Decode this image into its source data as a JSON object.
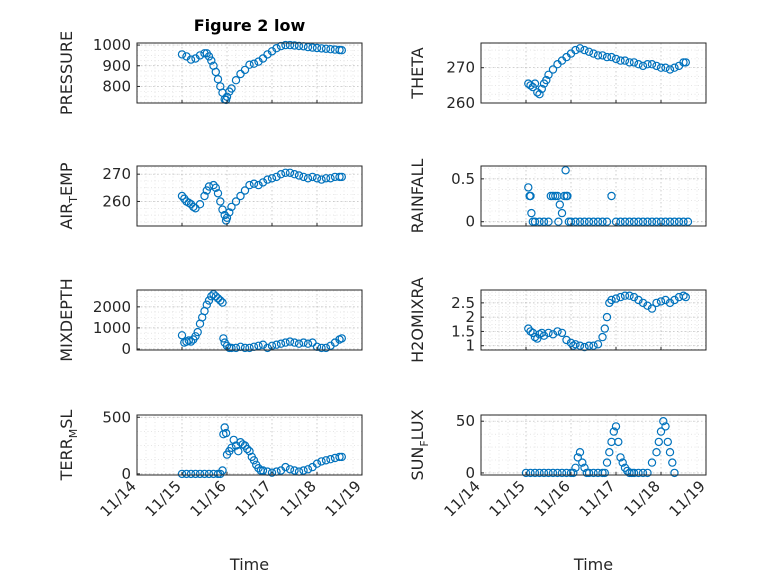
{
  "figure": {
    "title": "Figure 2 low"
  },
  "chart_data": [
    {
      "type": "scatter",
      "ylabel": "PRESSURE",
      "xlabel": "",
      "title": "Figure 2 low",
      "xlim": [
        "11/14",
        "11/19"
      ],
      "ylim": [
        720,
        1010
      ],
      "yticks": [
        800,
        900,
        1000
      ],
      "yticklabels": [
        "800",
        "900",
        "1000"
      ],
      "grid": true,
      "x": [
        15.0,
        15.1,
        15.2,
        15.3,
        15.4,
        15.5,
        15.55,
        15.6,
        15.65,
        15.7,
        15.75,
        15.8,
        15.85,
        15.9,
        15.95,
        15.98,
        16.0,
        16.05,
        16.1,
        16.2,
        16.3,
        16.4,
        16.5,
        16.6,
        16.7,
        16.8,
        16.9,
        17.0,
        17.1,
        17.2,
        17.3,
        17.4,
        17.5,
        17.6,
        17.7,
        17.8,
        17.9,
        18.0,
        18.1,
        18.2,
        18.3,
        18.4,
        18.5,
        18.55
      ],
      "y": [
        955,
        945,
        930,
        935,
        950,
        960,
        960,
        945,
        925,
        900,
        870,
        835,
        800,
        770,
        738,
        735,
        750,
        775,
        790,
        830,
        860,
        880,
        905,
        910,
        920,
        935,
        955,
        970,
        985,
        995,
        1000,
        1000,
        998,
        996,
        994,
        990,
        988,
        986,
        984,
        982,
        980,
        978,
        976,
        975
      ]
    },
    {
      "type": "scatter",
      "ylabel": "THETA",
      "xlabel": "",
      "xlim": [
        "11/14",
        "11/19"
      ],
      "ylim": [
        260,
        277
      ],
      "yticks": [
        260,
        270
      ],
      "yticklabels": [
        "260",
        "270"
      ],
      "grid": true,
      "x": [
        15.05,
        15.1,
        15.15,
        15.2,
        15.25,
        15.3,
        15.35,
        15.4,
        15.45,
        15.5,
        15.6,
        15.7,
        15.8,
        15.9,
        16.0,
        16.1,
        16.2,
        16.3,
        16.4,
        16.5,
        16.6,
        16.7,
        16.8,
        16.9,
        17.0,
        17.1,
        17.2,
        17.3,
        17.4,
        17.5,
        17.6,
        17.7,
        17.8,
        17.9,
        18.0,
        18.1,
        18.2,
        18.3,
        18.4,
        18.5,
        18.55
      ],
      "y": [
        265.5,
        265,
        264.5,
        265.5,
        263,
        262.5,
        264,
        265.5,
        266.5,
        268,
        269.5,
        271,
        272,
        273,
        274,
        275,
        275.5,
        275,
        274.5,
        274,
        273.5,
        273.5,
        273,
        273,
        272.5,
        272,
        272,
        271.5,
        271.5,
        271,
        270.5,
        271,
        271,
        270.5,
        270,
        270,
        269.5,
        270,
        270.5,
        271.5,
        271.5
      ]
    },
    {
      "type": "scatter",
      "ylabel": "AIR_TEMP",
      "xlabel": "",
      "xlim": [
        "11/14",
        "11/19"
      ],
      "ylim": [
        251,
        273
      ],
      "yticks": [
        260,
        270
      ],
      "yticklabels": [
        "260",
        "270"
      ],
      "grid": true,
      "x": [
        15.0,
        15.05,
        15.1,
        15.15,
        15.2,
        15.25,
        15.3,
        15.4,
        15.5,
        15.55,
        15.6,
        15.7,
        15.75,
        15.8,
        15.85,
        15.9,
        15.95,
        15.98,
        16.0,
        16.05,
        16.1,
        16.2,
        16.3,
        16.4,
        16.5,
        16.6,
        16.7,
        16.8,
        16.9,
        17.0,
        17.1,
        17.2,
        17.3,
        17.4,
        17.5,
        17.6,
        17.7,
        17.8,
        17.9,
        18.0,
        18.1,
        18.2,
        18.3,
        18.4,
        18.5,
        18.55
      ],
      "y": [
        262,
        261,
        260,
        259.5,
        259,
        258,
        257.5,
        259,
        262,
        264,
        265.5,
        266,
        265,
        263,
        260,
        257,
        255,
        253,
        254,
        256,
        258,
        260,
        262,
        264,
        266,
        266.5,
        266,
        267,
        268,
        268.5,
        269,
        270,
        270.5,
        270.5,
        270,
        269.5,
        269,
        268.5,
        269,
        268.5,
        268,
        268.5,
        268.5,
        269,
        269,
        269
      ]
    },
    {
      "type": "scatter",
      "ylabel": "RAINFALL",
      "xlabel": "",
      "xlim": [
        "11/14",
        "11/19"
      ],
      "ylim": [
        -0.05,
        0.65
      ],
      "yticks": [
        0,
        0.5
      ],
      "yticklabels": [
        "0",
        "0.5"
      ],
      "grid": true,
      "x": [
        15.05,
        15.08,
        15.1,
        15.12,
        15.15,
        15.2,
        15.3,
        15.4,
        15.5,
        15.55,
        15.6,
        15.65,
        15.7,
        15.72,
        15.75,
        15.8,
        15.85,
        15.88,
        15.9,
        15.92,
        15.95,
        16.0,
        16.1,
        16.2,
        16.3,
        16.4,
        16.5,
        16.6,
        16.7,
        16.8,
        16.9,
        17.0,
        17.1,
        17.2,
        17.3,
        17.4,
        17.5,
        17.6,
        17.7,
        17.8,
        17.9,
        18.0,
        18.1,
        18.2,
        18.3,
        18.4,
        18.5,
        18.6
      ],
      "y": [
        0.4,
        0.3,
        0.3,
        0.1,
        0,
        0,
        0,
        0,
        0,
        0.3,
        0.3,
        0.3,
        0.3,
        0,
        0.2,
        0.1,
        0.3,
        0.6,
        0.3,
        0.3,
        0,
        0,
        0,
        0,
        0,
        0,
        0,
        0,
        0,
        0,
        0.3,
        0,
        0,
        0,
        0,
        0,
        0,
        0,
        0,
        0,
        0,
        0,
        0,
        0,
        0,
        0,
        0,
        0
      ]
    },
    {
      "type": "scatter",
      "ylabel": "MIXDEPTH",
      "xlabel": "",
      "xlim": [
        "11/14",
        "11/19"
      ],
      "ylim": [
        -50,
        2800
      ],
      "yticks": [
        0,
        1000,
        2000
      ],
      "yticklabels": [
        "0",
        "1000",
        "2000"
      ],
      "grid": true,
      "x": [
        15.0,
        15.05,
        15.1,
        15.15,
        15.2,
        15.25,
        15.3,
        15.35,
        15.4,
        15.45,
        15.5,
        15.55,
        15.6,
        15.65,
        15.7,
        15.75,
        15.8,
        15.85,
        15.9,
        15.92,
        15.95,
        16.0,
        16.05,
        16.1,
        16.2,
        16.3,
        16.4,
        16.5,
        16.6,
        16.7,
        16.8,
        16.9,
        17.0,
        17.1,
        17.2,
        17.3,
        17.4,
        17.5,
        17.6,
        17.7,
        17.8,
        17.9,
        18.0,
        18.1,
        18.2,
        18.3,
        18.4,
        18.5,
        18.55
      ],
      "y": [
        650,
        300,
        350,
        400,
        350,
        450,
        600,
        800,
        1200,
        1500,
        1800,
        2100,
        2300,
        2500,
        2600,
        2500,
        2400,
        2300,
        2200,
        500,
        300,
        150,
        50,
        50,
        50,
        100,
        50,
        50,
        100,
        150,
        200,
        50,
        150,
        200,
        250,
        300,
        350,
        300,
        250,
        300,
        250,
        300,
        100,
        50,
        50,
        150,
        300,
        450,
        500
      ]
    },
    {
      "type": "scatter",
      "ylabel": "H2OMIXRA",
      "xlabel": "",
      "xlim": [
        "11/14",
        "11/19"
      ],
      "ylim": [
        0.85,
        2.95
      ],
      "yticks": [
        1,
        1.5,
        2,
        2.5
      ],
      "yticklabels": [
        "1",
        "1.5",
        "2",
        "2.5"
      ],
      "grid": true,
      "x": [
        15.05,
        15.1,
        15.15,
        15.2,
        15.25,
        15.3,
        15.35,
        15.4,
        15.5,
        15.6,
        15.7,
        15.8,
        15.9,
        16.0,
        16.05,
        16.1,
        16.2,
        16.3,
        16.4,
        16.5,
        16.6,
        16.7,
        16.75,
        16.8,
        16.85,
        16.9,
        17.0,
        17.1,
        17.2,
        17.3,
        17.4,
        17.5,
        17.6,
        17.7,
        17.8,
        17.9,
        18.0,
        18.1,
        18.2,
        18.3,
        18.4,
        18.5,
        18.55
      ],
      "y": [
        1.6,
        1.5,
        1.45,
        1.3,
        1.25,
        1.4,
        1.45,
        1.35,
        1.45,
        1.4,
        1.5,
        1.45,
        1.2,
        1.1,
        1.0,
        1.05,
        1.0,
        0.95,
        1.0,
        1.0,
        1.05,
        1.3,
        1.6,
        2.0,
        2.5,
        2.6,
        2.65,
        2.7,
        2.75,
        2.75,
        2.7,
        2.6,
        2.5,
        2.4,
        2.3,
        2.5,
        2.55,
        2.6,
        2.5,
        2.6,
        2.7,
        2.75,
        2.7
      ]
    },
    {
      "type": "scatter",
      "ylabel": "TERR_MSL",
      "xlabel": "Time",
      "xlim": [
        "11/14",
        "11/19"
      ],
      "ylim": [
        -10,
        520
      ],
      "yticks": [
        0,
        500
      ],
      "yticklabels": [
        "0",
        "500"
      ],
      "xticks": [
        "11/14",
        "11/15",
        "11/16",
        "11/17",
        "11/18",
        "11/19"
      ],
      "grid": true,
      "x": [
        15.0,
        15.1,
        15.2,
        15.3,
        15.4,
        15.5,
        15.6,
        15.7,
        15.8,
        15.85,
        15.9,
        15.92,
        15.95,
        15.98,
        16.0,
        16.05,
        16.1,
        16.15,
        16.2,
        16.25,
        16.3,
        16.35,
        16.4,
        16.45,
        16.5,
        16.55,
        16.6,
        16.65,
        16.7,
        16.75,
        16.8,
        16.9,
        17.0,
        17.1,
        17.2,
        17.3,
        17.4,
        17.5,
        17.6,
        17.7,
        17.8,
        17.9,
        18.0,
        18.1,
        18.2,
        18.3,
        18.4,
        18.5,
        18.55
      ],
      "y": [
        0,
        0,
        0,
        0,
        0,
        0,
        0,
        0,
        0,
        0,
        30,
        350,
        410,
        360,
        170,
        200,
        230,
        300,
        250,
        200,
        280,
        260,
        250,
        220,
        200,
        150,
        120,
        80,
        50,
        30,
        30,
        20,
        10,
        20,
        30,
        60,
        40,
        30,
        20,
        30,
        40,
        60,
        90,
        110,
        120,
        130,
        140,
        150,
        150
      ]
    },
    {
      "type": "scatter",
      "ylabel": "SUN_FLUX",
      "xlabel": "Time",
      "xlim": [
        "11/14",
        "11/19"
      ],
      "ylim": [
        -2,
        56
      ],
      "yticks": [
        0,
        50
      ],
      "yticklabels": [
        "0",
        "50"
      ],
      "xticks": [
        "11/14",
        "11/15",
        "11/16",
        "11/17",
        "11/18",
        "11/19"
      ],
      "grid": true,
      "x": [
        15.0,
        15.1,
        15.2,
        15.3,
        15.4,
        15.5,
        15.6,
        15.7,
        15.8,
        15.9,
        16.0,
        16.05,
        16.1,
        16.15,
        16.2,
        16.25,
        16.3,
        16.35,
        16.4,
        16.5,
        16.6,
        16.7,
        16.75,
        16.8,
        16.85,
        16.9,
        16.95,
        17.0,
        17.05,
        17.1,
        17.15,
        17.2,
        17.25,
        17.3,
        17.35,
        17.4,
        17.5,
        17.6,
        17.7,
        17.8,
        17.9,
        17.95,
        18.0,
        18.05,
        18.1,
        18.15,
        18.2,
        18.25,
        18.3
      ],
      "y": [
        0,
        0,
        0,
        0,
        0,
        0,
        0,
        0,
        0,
        0,
        0,
        0,
        5,
        15,
        20,
        10,
        5,
        0,
        0,
        0,
        0,
        0,
        0,
        10,
        20,
        30,
        40,
        45,
        30,
        15,
        10,
        5,
        2,
        0,
        0,
        0,
        0,
        0,
        0,
        10,
        20,
        30,
        40,
        50,
        45,
        30,
        20,
        10,
        0
      ]
    }
  ]
}
